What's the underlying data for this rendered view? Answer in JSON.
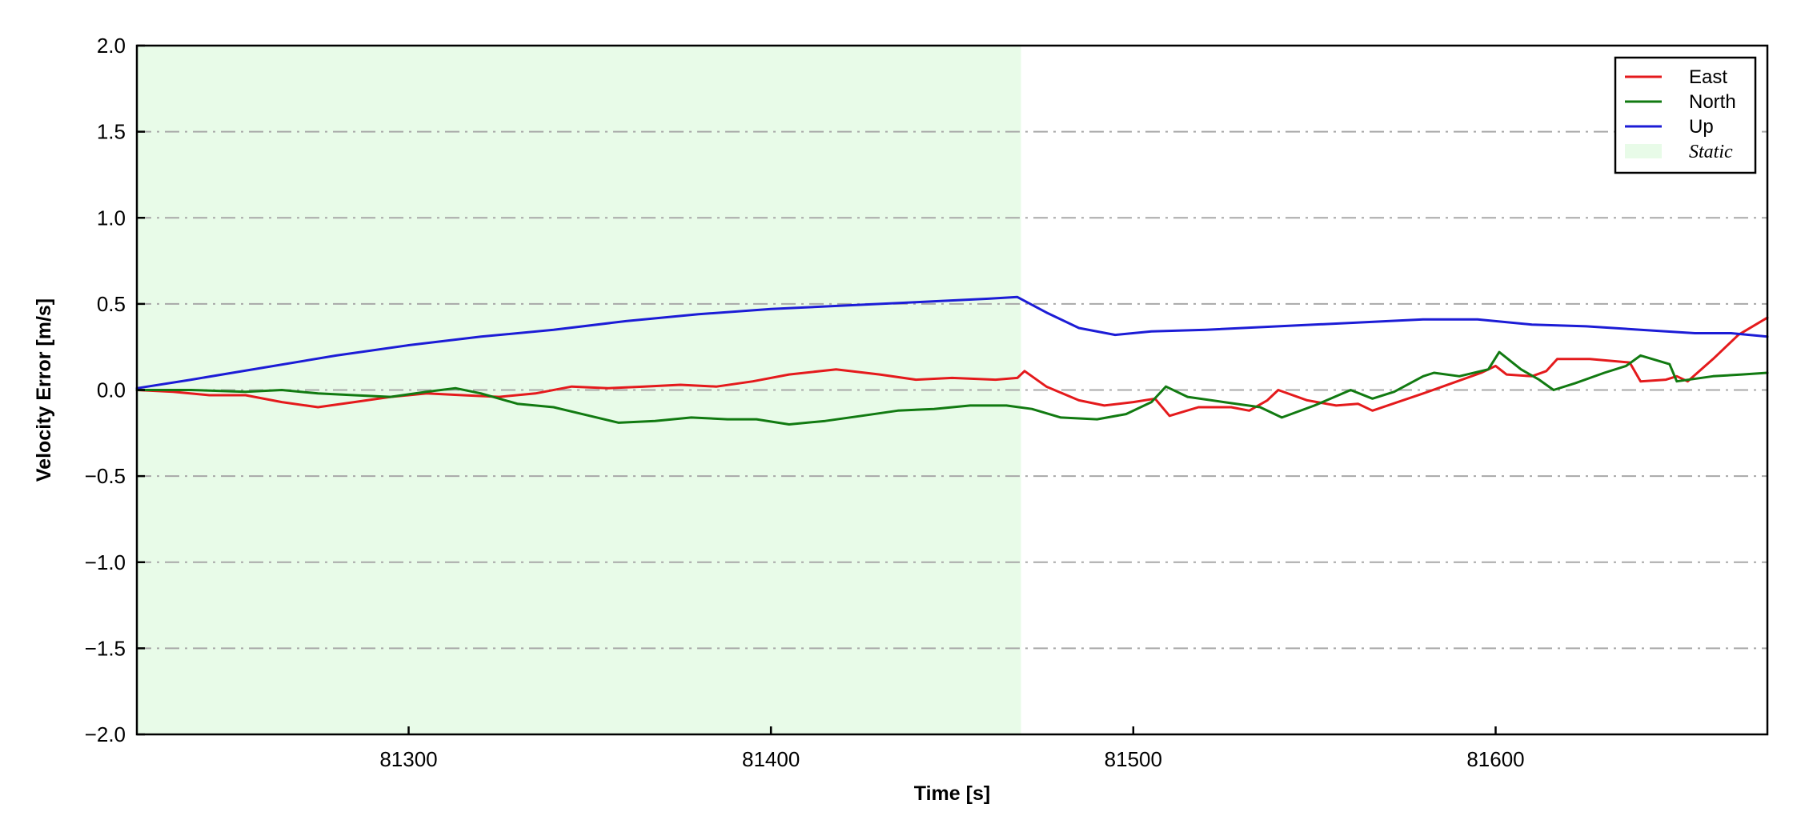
{
  "chart_data": {
    "type": "line",
    "title": "",
    "xlabel": "Time [s]",
    "ylabel": "Velocity Error [m/s]",
    "xlim": [
      81225,
      81675
    ],
    "ylim": [
      -2.0,
      2.0
    ],
    "xticks": [
      81300,
      81400,
      81500,
      81600
    ],
    "xtick_labels": [
      "81300",
      "81400",
      "81500",
      "81600"
    ],
    "yticks": [
      -2.0,
      -1.5,
      -1.0,
      -0.5,
      0.0,
      0.5,
      1.0,
      1.5,
      2.0
    ],
    "ytick_labels": [
      "−2.0",
      "−1.5",
      "−1.0",
      "−0.5",
      "0.0",
      "0.5",
      "1.0",
      "1.5",
      "2.0"
    ],
    "grid": "horizontal dash-dot",
    "legend_position": "top-right",
    "static_region": {
      "label": "Static",
      "x_start": 81225,
      "x_end": 81469,
      "color": "#e8fbe8"
    },
    "series": [
      {
        "name": "East",
        "color": "#e41a1c",
        "points": [
          [
            81225,
            0.0
          ],
          [
            81235,
            -0.01
          ],
          [
            81245,
            -0.03
          ],
          [
            81255,
            -0.03
          ],
          [
            81265,
            -0.07
          ],
          [
            81275,
            -0.1
          ],
          [
            81285,
            -0.07
          ],
          [
            81295,
            -0.04
          ],
          [
            81305,
            -0.02
          ],
          [
            81315,
            -0.03
          ],
          [
            81325,
            -0.04
          ],
          [
            81335,
            -0.02
          ],
          [
            81345,
            0.02
          ],
          [
            81355,
            0.01
          ],
          [
            81365,
            0.02
          ],
          [
            81375,
            0.03
          ],
          [
            81385,
            0.02
          ],
          [
            81395,
            0.05
          ],
          [
            81405,
            0.09
          ],
          [
            81418,
            0.12
          ],
          [
            81430,
            0.09
          ],
          [
            81440,
            0.06
          ],
          [
            81450,
            0.07
          ],
          [
            81462,
            0.06
          ],
          [
            81468,
            0.07
          ],
          [
            81470,
            0.11
          ],
          [
            81476,
            0.02
          ],
          [
            81485,
            -0.06
          ],
          [
            81492,
            -0.09
          ],
          [
            81500,
            -0.07
          ],
          [
            81506,
            -0.05
          ],
          [
            81510,
            -0.15
          ],
          [
            81518,
            -0.1
          ],
          [
            81527,
            -0.1
          ],
          [
            81532,
            -0.12
          ],
          [
            81537,
            -0.06
          ],
          [
            81540,
            0.0
          ],
          [
            81548,
            -0.06
          ],
          [
            81556,
            -0.09
          ],
          [
            81562,
            -0.08
          ],
          [
            81566,
            -0.12
          ],
          [
            81573,
            -0.07
          ],
          [
            81580,
            -0.02
          ],
          [
            81588,
            0.04
          ],
          [
            81596,
            0.1
          ],
          [
            81600,
            0.14
          ],
          [
            81603,
            0.09
          ],
          [
            81610,
            0.08
          ],
          [
            81614,
            0.11
          ],
          [
            81617,
            0.18
          ],
          [
            81626,
            0.18
          ],
          [
            81637,
            0.16
          ],
          [
            81640,
            0.05
          ],
          [
            81647,
            0.06
          ],
          [
            81650,
            0.08
          ],
          [
            81653,
            0.05
          ],
          [
            81660,
            0.18
          ],
          [
            81667,
            0.32
          ],
          [
            81675,
            0.42
          ]
        ]
      },
      {
        "name": "North",
        "color": "#117a11",
        "points": [
          [
            81225,
            0.0
          ],
          [
            81240,
            0.0
          ],
          [
            81255,
            -0.01
          ],
          [
            81265,
            0.0
          ],
          [
            81275,
            -0.02
          ],
          [
            81285,
            -0.03
          ],
          [
            81295,
            -0.04
          ],
          [
            81305,
            -0.01
          ],
          [
            81313,
            0.01
          ],
          [
            81320,
            -0.02
          ],
          [
            81330,
            -0.08
          ],
          [
            81340,
            -0.1
          ],
          [
            81350,
            -0.15
          ],
          [
            81358,
            -0.19
          ],
          [
            81368,
            -0.18
          ],
          [
            81378,
            -0.16
          ],
          [
            81388,
            -0.17
          ],
          [
            81396,
            -0.17
          ],
          [
            81405,
            -0.2
          ],
          [
            81415,
            -0.18
          ],
          [
            81425,
            -0.15
          ],
          [
            81435,
            -0.12
          ],
          [
            81445,
            -0.11
          ],
          [
            81455,
            -0.09
          ],
          [
            81465,
            -0.09
          ],
          [
            81472,
            -0.11
          ],
          [
            81480,
            -0.16
          ],
          [
            81490,
            -0.17
          ],
          [
            81498,
            -0.14
          ],
          [
            81505,
            -0.07
          ],
          [
            81509,
            0.02
          ],
          [
            81515,
            -0.04
          ],
          [
            81525,
            -0.07
          ],
          [
            81535,
            -0.1
          ],
          [
            81541,
            -0.16
          ],
          [
            81550,
            -0.09
          ],
          [
            81560,
            0.0
          ],
          [
            81566,
            -0.05
          ],
          [
            81572,
            -0.01
          ],
          [
            81580,
            0.08
          ],
          [
            81583,
            0.1
          ],
          [
            81590,
            0.08
          ],
          [
            81598,
            0.12
          ],
          [
            81601,
            0.22
          ],
          [
            81607,
            0.12
          ],
          [
            81612,
            0.06
          ],
          [
            81616,
            0.0
          ],
          [
            81622,
            0.04
          ],
          [
            81630,
            0.1
          ],
          [
            81636,
            0.14
          ],
          [
            81640,
            0.2
          ],
          [
            81648,
            0.15
          ],
          [
            81650,
            0.05
          ],
          [
            81660,
            0.08
          ],
          [
            81668,
            0.09
          ],
          [
            81675,
            0.1
          ]
        ]
      },
      {
        "name": "Up",
        "color": "#1c1cd6",
        "points": [
          [
            81225,
            0.01
          ],
          [
            81240,
            0.06
          ],
          [
            81260,
            0.13
          ],
          [
            81280,
            0.2
          ],
          [
            81300,
            0.26
          ],
          [
            81320,
            0.31
          ],
          [
            81340,
            0.35
          ],
          [
            81360,
            0.4
          ],
          [
            81380,
            0.44
          ],
          [
            81400,
            0.47
          ],
          [
            81420,
            0.49
          ],
          [
            81440,
            0.51
          ],
          [
            81460,
            0.53
          ],
          [
            81468,
            0.54
          ],
          [
            81476,
            0.45
          ],
          [
            81485,
            0.36
          ],
          [
            81495,
            0.32
          ],
          [
            81505,
            0.34
          ],
          [
            81520,
            0.35
          ],
          [
            81540,
            0.37
          ],
          [
            81560,
            0.39
          ],
          [
            81580,
            0.41
          ],
          [
            81595,
            0.41
          ],
          [
            81610,
            0.38
          ],
          [
            81625,
            0.37
          ],
          [
            81640,
            0.35
          ],
          [
            81655,
            0.33
          ],
          [
            81665,
            0.33
          ],
          [
            81675,
            0.31
          ]
        ]
      }
    ]
  }
}
